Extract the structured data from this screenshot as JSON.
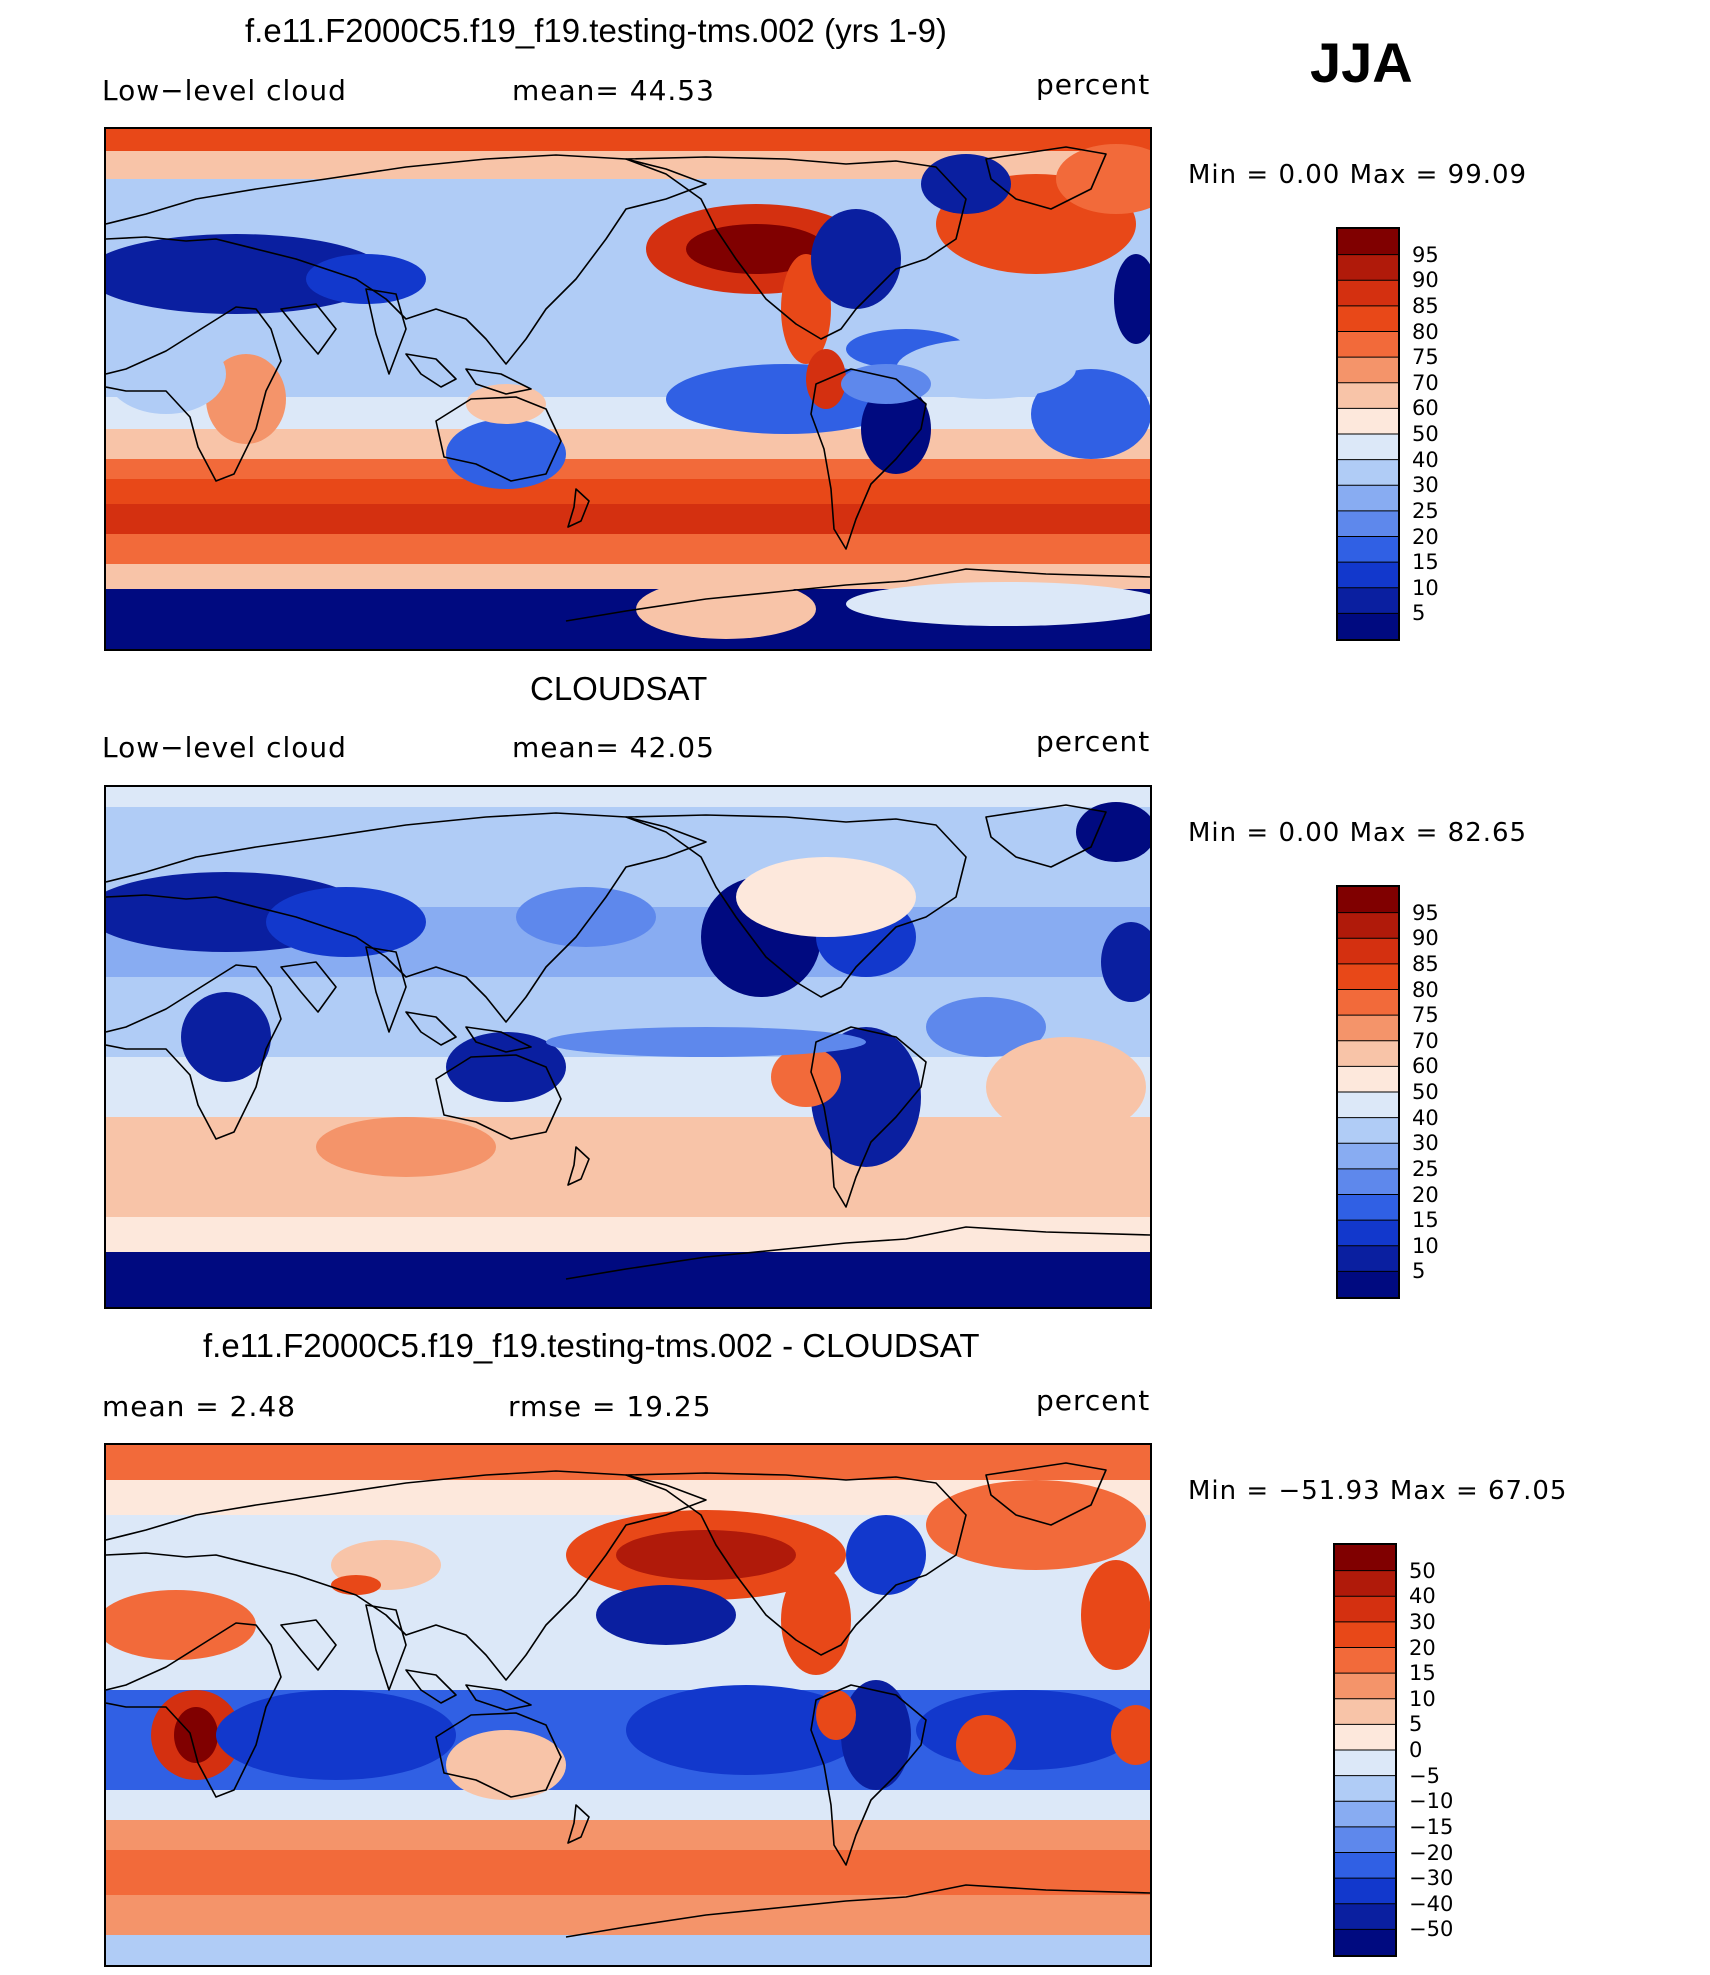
{
  "season": "JJA",
  "panels": [
    {
      "title": "f.e11.F2000C5.f19_f19.testing-tms.002 (yrs 1-9)",
      "left_label": "Low−level cloud",
      "mid_label": "mean=   44.53",
      "unit": "percent",
      "minmax": "Min =     0.00 Max =    99.09"
    },
    {
      "title": "CLOUDSAT",
      "left_label": "Low−level cloud",
      "mid_label": "mean=   42.05",
      "unit": "percent",
      "minmax": "Min =     0.00 Max =    82.65"
    },
    {
      "title": "f.e11.F2000C5.f19_f19.testing-tms.002 - CLOUDSAT",
      "left_label": "mean =     2.48",
      "mid_label": "rmse =    19.25",
      "unit": "percent",
      "minmax": "Min = −51.93 Max =    67.05"
    }
  ],
  "chart_data": [
    {
      "type": "heatmap",
      "title": "f.e11.F2000C5.f19_f19.testing-tms.002 (yrs 1-9)",
      "field": "Low−level cloud",
      "units": "percent",
      "mean": 44.53,
      "min": 0.0,
      "max": 99.09,
      "colorbar_labels": [
        "95",
        "90",
        "85",
        "80",
        "75",
        "70",
        "60",
        "50",
        "40",
        "30",
        "25",
        "20",
        "15",
        "10",
        "5"
      ],
      "colors": [
        "#800000",
        "#b01a0a",
        "#d43010",
        "#e84818",
        "#f26a3a",
        "#f4946a",
        "#f8c4a8",
        "#fde8dc",
        "#dce8f8",
        "#b0ccf6",
        "#88acf2",
        "#5e88ec",
        "#3060e4",
        "#1238cc",
        "#0a1fa0",
        "#000a80"
      ]
    },
    {
      "type": "heatmap",
      "title": "CLOUDSAT",
      "field": "Low−level cloud",
      "units": "percent",
      "mean": 42.05,
      "min": 0.0,
      "max": 82.65,
      "colorbar_labels": [
        "95",
        "90",
        "85",
        "80",
        "75",
        "70",
        "60",
        "50",
        "40",
        "30",
        "25",
        "20",
        "15",
        "10",
        "5"
      ],
      "colors": [
        "#800000",
        "#b01a0a",
        "#d43010",
        "#e84818",
        "#f26a3a",
        "#f4946a",
        "#f8c4a8",
        "#fde8dc",
        "#dce8f8",
        "#b0ccf6",
        "#88acf2",
        "#5e88ec",
        "#3060e4",
        "#1238cc",
        "#0a1fa0",
        "#000a80"
      ]
    },
    {
      "type": "heatmap",
      "title": "f.e11.F2000C5.f19_f19.testing-tms.002 - CLOUDSAT",
      "units": "percent",
      "mean": 2.48,
      "rmse": 19.25,
      "min": -51.93,
      "max": 67.05,
      "colorbar_labels": [
        "50",
        "40",
        "30",
        "20",
        "15",
        "10",
        "5",
        "0",
        "−5",
        "−10",
        "−15",
        "−20",
        "−30",
        "−40",
        "−50"
      ],
      "colors": [
        "#800000",
        "#b01a0a",
        "#d43010",
        "#e84818",
        "#f26a3a",
        "#f4946a",
        "#f8c4a8",
        "#fde8dc",
        "#dce8f8",
        "#b0ccf6",
        "#88acf2",
        "#5e88ec",
        "#3060e4",
        "#1238cc",
        "#0a1fa0",
        "#000a80"
      ]
    }
  ]
}
